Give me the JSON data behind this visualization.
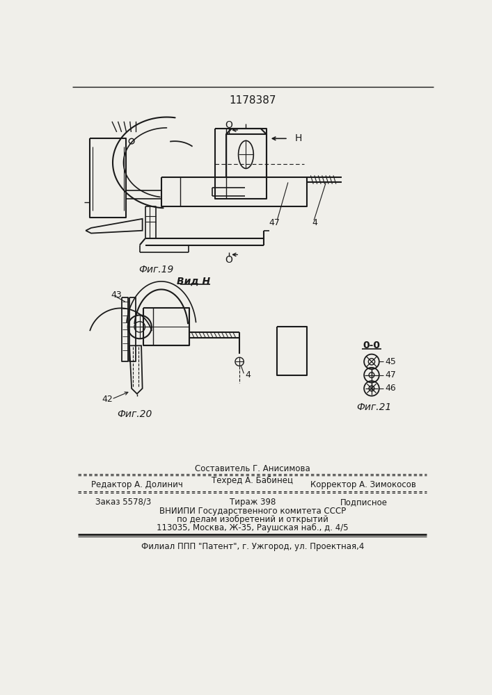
{
  "title": "1178387",
  "bg_color": "#f0efea",
  "line_color": "#1a1a1a",
  "text_color": "#1a1a1a",
  "fig19_label": "Фиг.19",
  "fig20_label": "Фиг.20",
  "fig21_label": "Фиг.21",
  "vid_h_label": "Вид Н",
  "oo_label": "0-0",
  "footer_sestavitel": "Составитель Г. Анисимова",
  "footer_editor": "Редактор А. Долинич",
  "footer_tekhred": "Техред А. Бабинец",
  "footer_korrektor": "Корректор А. Зимокосов",
  "footer_zakaz": "Заказ 5578/3",
  "footer_tirazh": "Тираж 398",
  "footer_podpisnoe": "Подписное",
  "footer_vniipи": "ВНИИПИ Государственного комитета СССР",
  "footer_po_delam": "по делам изобретений и открытий",
  "footer_address": "113035, Москва, Ж-35, Раушская наб., д. 4/5",
  "footer_filial": "Филиал ППП \"Патент\", г. Ужгород, ул. Проектная,4"
}
